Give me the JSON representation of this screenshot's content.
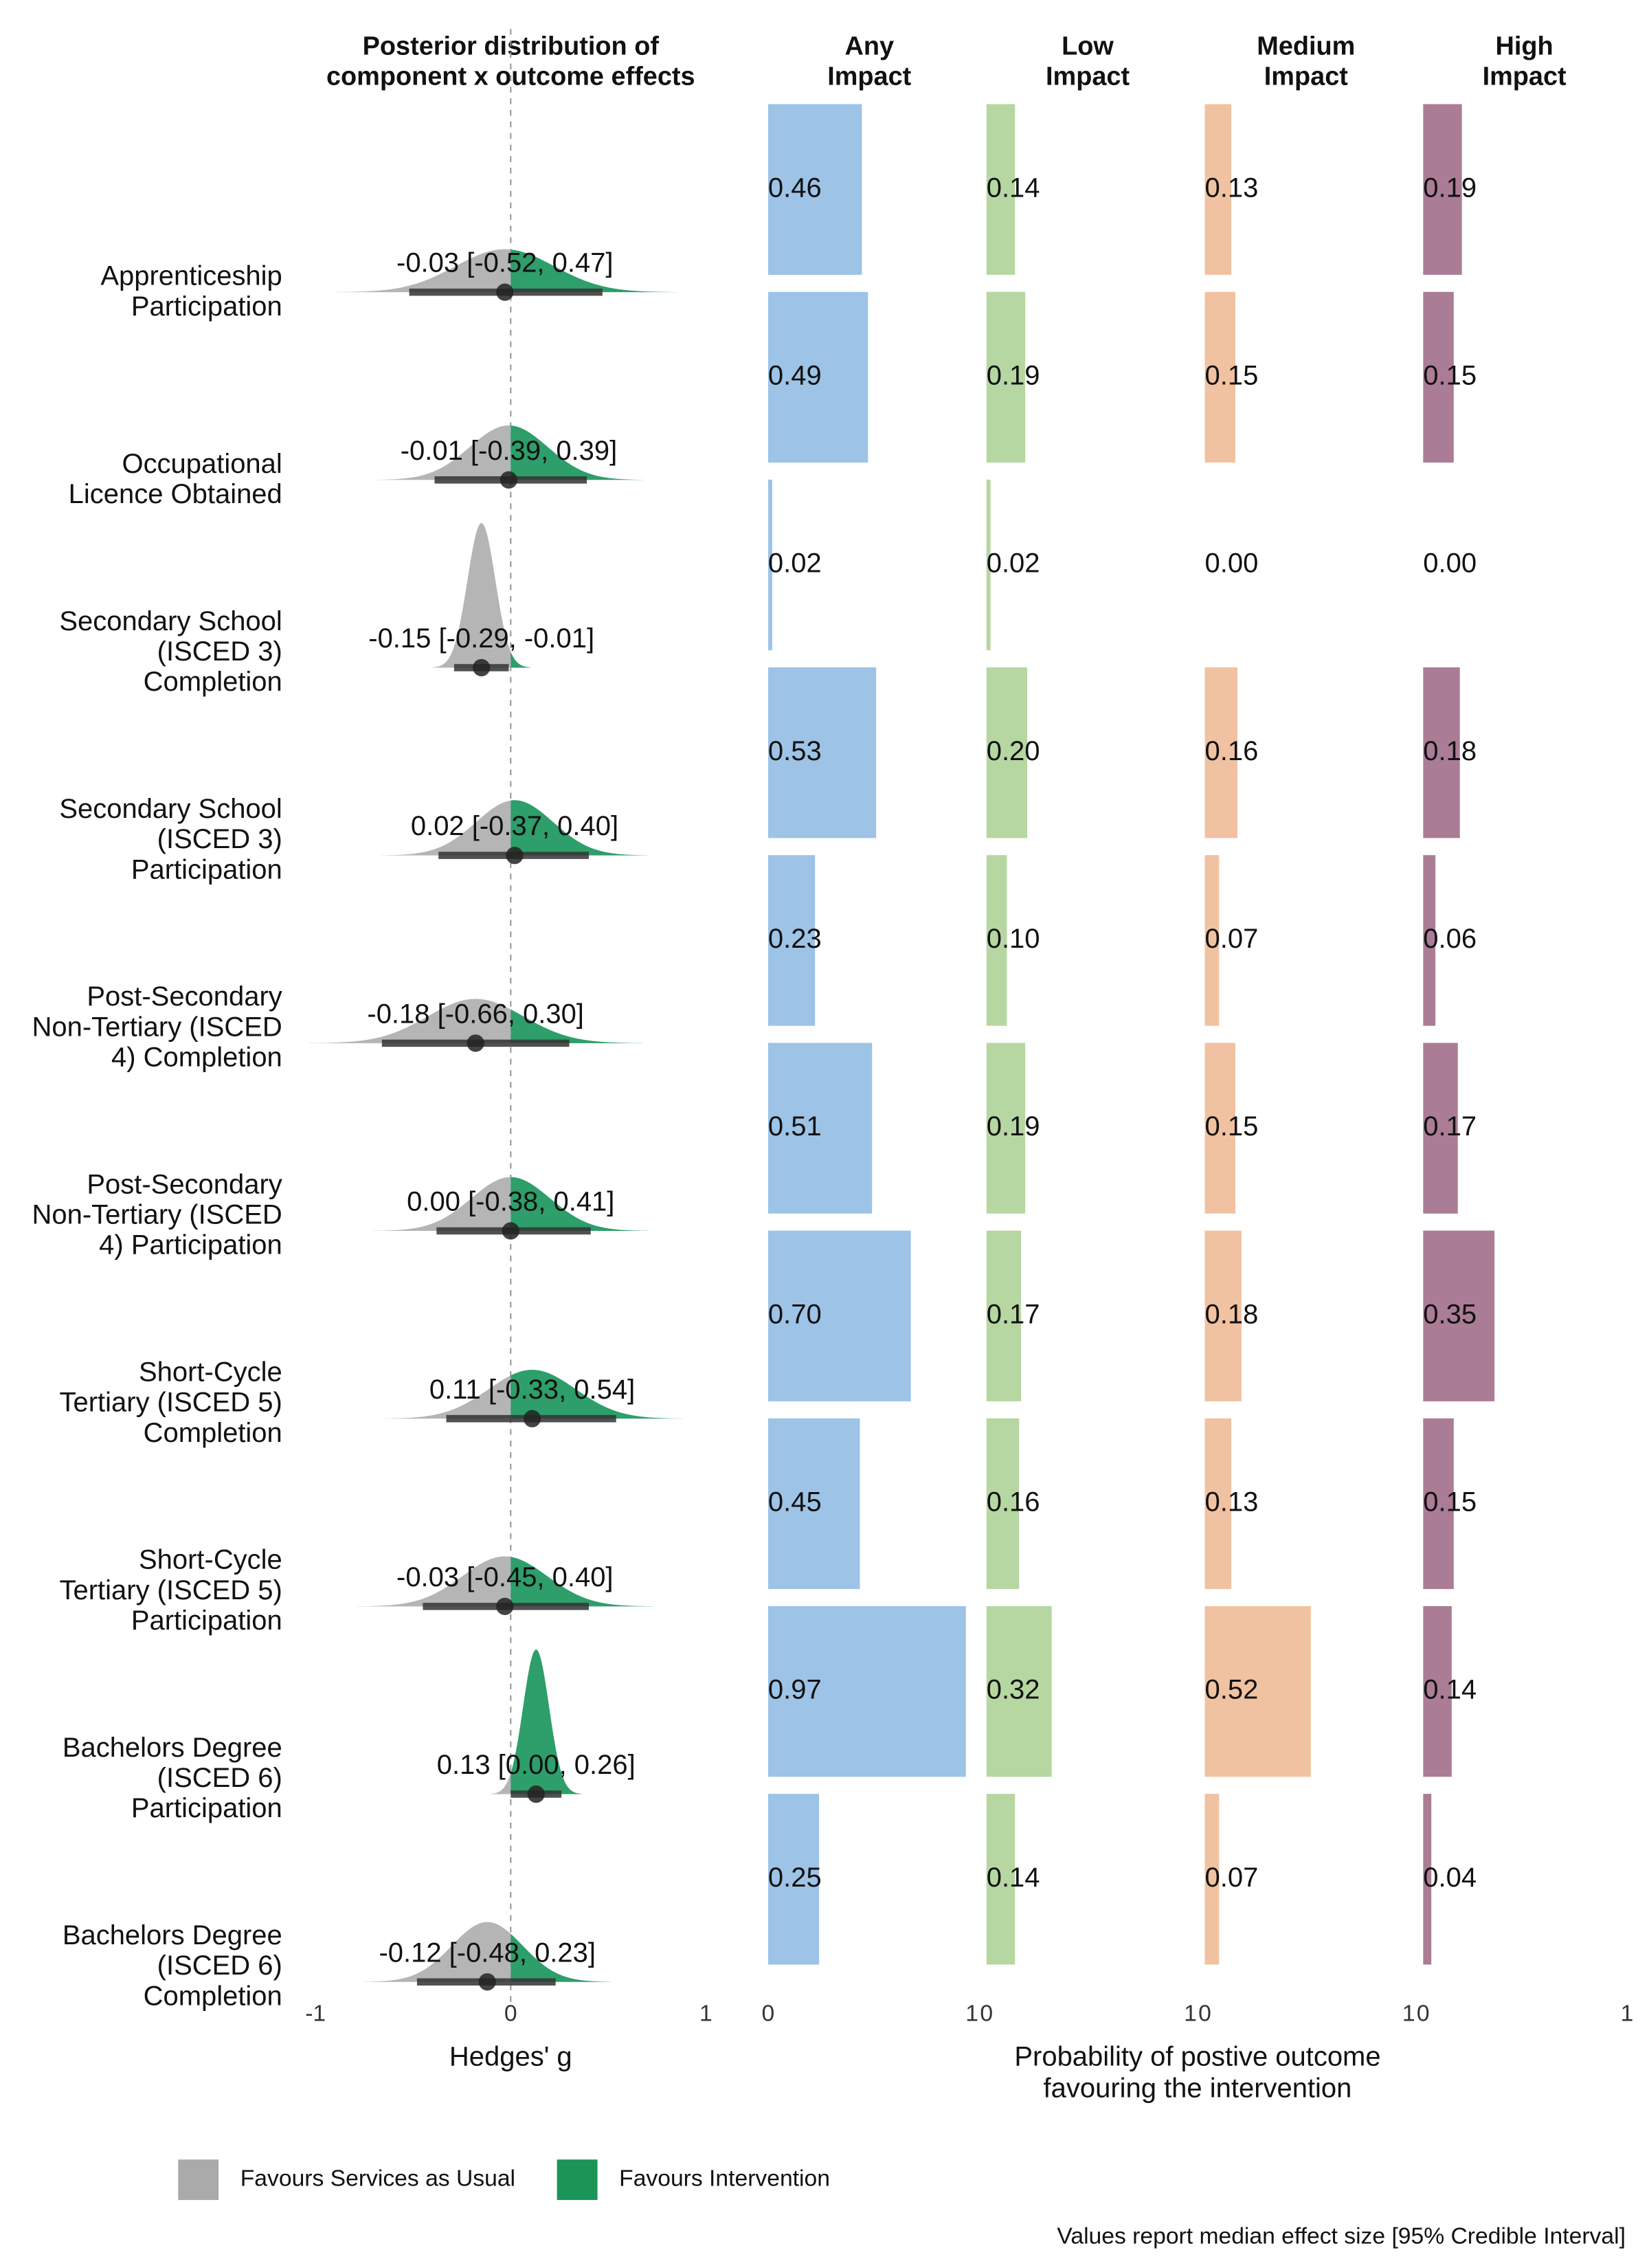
{
  "chart_data": {
    "type": "forest_probability",
    "title": [
      "Posterior distribution of",
      "component x outcome effects"
    ],
    "categories": [
      [
        "Apprenticeship",
        "Participation"
      ],
      [
        "Occupational",
        "Licence Obtained"
      ],
      [
        "Secondary School",
        "(ISCED 3)",
        "Completion"
      ],
      [
        "Secondary School",
        "(ISCED 3)",
        "Participation"
      ],
      [
        "Post-Secondary",
        "Non-Tertiary (ISCED",
        "4) Completion"
      ],
      [
        "Post-Secondary",
        "Non-Tertiary (ISCED",
        "4) Participation"
      ],
      [
        "Short-Cycle",
        "Tertiary (ISCED 5)",
        "Completion"
      ],
      [
        "Short-Cycle",
        "Tertiary (ISCED 5)",
        "Participation"
      ],
      [
        "Bachelors Degree",
        "(ISCED 6)",
        "Participation"
      ],
      [
        "Bachelors Degree",
        "(ISCED 6)",
        "Completion"
      ]
    ],
    "medians": [
      -0.03,
      -0.01,
      -0.15,
      0.02,
      -0.18,
      0.0,
      0.11,
      -0.03,
      0.13,
      -0.12
    ],
    "lower": [
      -0.52,
      -0.39,
      -0.29,
      -0.37,
      -0.66,
      -0.38,
      -0.33,
      -0.45,
      0.0,
      -0.48
    ],
    "upper": [
      0.47,
      0.39,
      -0.01,
      0.4,
      0.3,
      0.41,
      0.54,
      0.4,
      0.26,
      0.23
    ],
    "value_labels": [
      "-0.03 [-0.52, 0.47]",
      "-0.01 [-0.39, 0.39]",
      "-0.15 [-0.29, -0.01]",
      "0.02 [-0.37, 0.40]",
      "-0.18 [-0.66, 0.30]",
      "0.00 [-0.38, 0.41]",
      "0.11 [-0.33, 0.54]",
      "-0.03 [-0.45, 0.40]",
      "0.13 [0.00, 0.26]",
      "-0.12 [-0.48, 0.23]"
    ],
    "xlim": [
      -1,
      1
    ],
    "xticks": [
      -1,
      0,
      1
    ],
    "xlabel": "Hedges' g",
    "series": [
      {
        "name": [
          "Any",
          "Impact"
        ],
        "color": "#9dc3e6",
        "values": [
          0.46,
          0.49,
          0.02,
          0.53,
          0.23,
          0.51,
          0.7,
          0.45,
          0.97,
          0.25
        ],
        "value_labels": [
          "0.46",
          "0.49",
          "0.02",
          "0.53",
          "0.23",
          "0.51",
          "0.70",
          "0.45",
          "0.97",
          "0.25"
        ]
      },
      {
        "name": [
          "Low",
          "Impact"
        ],
        "color": "#b6d7a1",
        "values": [
          0.14,
          0.19,
          0.02,
          0.2,
          0.1,
          0.19,
          0.17,
          0.16,
          0.32,
          0.14
        ],
        "value_labels": [
          "0.14",
          "0.19",
          "0.02",
          "0.20",
          "0.10",
          "0.19",
          "0.17",
          "0.16",
          "0.32",
          "0.14"
        ]
      },
      {
        "name": [
          "Medium",
          "Impact"
        ],
        "color": "#f1c2a1",
        "values": [
          0.13,
          0.15,
          0.0,
          0.16,
          0.07,
          0.15,
          0.18,
          0.13,
          0.52,
          0.07
        ],
        "value_labels": [
          "0.13",
          "0.15",
          "0.00",
          "0.16",
          "0.07",
          "0.15",
          "0.18",
          "0.13",
          "0.52",
          "0.07"
        ]
      },
      {
        "name": [
          "High",
          "Impact"
        ],
        "color": "#ab7c95",
        "values": [
          0.19,
          0.15,
          0.0,
          0.18,
          0.06,
          0.17,
          0.35,
          0.15,
          0.14,
          0.04
        ],
        "value_labels": [
          "0.19",
          "0.15",
          "0.00",
          "0.18",
          "0.06",
          "0.17",
          "0.35",
          "0.15",
          "0.14",
          "0.04"
        ]
      }
    ],
    "prob_xlim": [
      0,
      1
    ],
    "prob_xticks": [
      0,
      1
    ],
    "prob_xlabel": [
      "Probability of postive outcome",
      "favouring the intervention"
    ],
    "legend": [
      {
        "name": "Favours Services as Usual",
        "color": "#aaaaaa"
      },
      {
        "name": "Favours Intervention",
        "color": "#1b9457"
      }
    ],
    "density_colors": [
      "#b5b5b5",
      "#2e9e6a"
    ],
    "note": "Values report median effect size [95% Credible Interval]"
  }
}
